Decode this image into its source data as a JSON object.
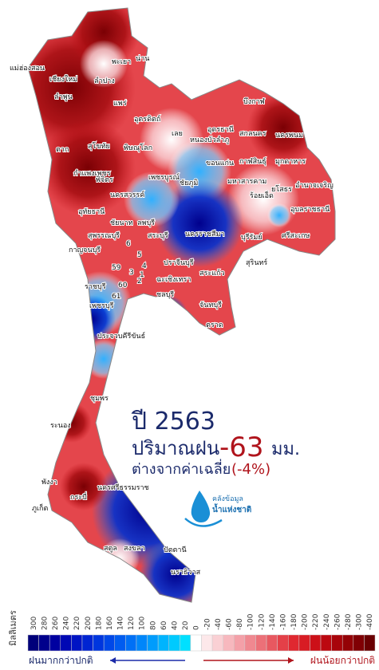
{
  "title": {
    "year": "ปี 2563",
    "label": "ปริมาณฝน",
    "value": "-63",
    "unit": "มม.",
    "diff_text": "ต่างจากค่าเฉลี่ย",
    "diff_value": "(-4%)"
  },
  "logo": {
    "line1": "คลังข้อมูล",
    "line2": "น้ำแห่งชาติ"
  },
  "provinces": [
    "แม่ฮ่องสอน",
    "เชียงใหม่",
    "ลำพูน",
    "ลำปาง",
    "พะเยา",
    "น่าน",
    "แพร่",
    "อุตรดิตถ์",
    "ตาก",
    "สุโขทัย",
    "พิษณุโลก",
    "กำแพงเพชร",
    "พิจิตร",
    "เพชรบูรณ์",
    "นครสวรรค์",
    "อุทัยธานี",
    "ชัยนาท",
    "ลพบุรี",
    "สุพรรณบุรี",
    "กาญจนบุรี",
    "สระบุรี",
    "เลย",
    "หนองบัวลำภู",
    "อุดรธานี",
    "สกลนคร",
    "นครพนม",
    "บึงกาฬ",
    "ขอนแก่น",
    "ชัยภูมิ",
    "กาฬสินธุ์",
    "มุกดาหาร",
    "มหาสารคาม",
    "ร้อยเอ็ด",
    "ยโสธร",
    "อำนาจเจริญ",
    "อุบลราชธานี",
    "นครราชสีมา",
    "บุรีรัมย์",
    "สุรินทร์",
    "ศรีสะเกษ",
    "ปราจีนบุรี",
    "สระแก้ว",
    "ฉะเชิงเทรา",
    "ราชบุรี",
    "เพชรบุรี",
    "ชลบุรี",
    "จันทบุรี",
    "ตราด",
    "ประจวบคีรีขันธ์",
    "ชุมพร",
    "ระนอง",
    "พังงา",
    "กระบี่",
    "ภูเก็ต",
    "นครศรีธรรมราช",
    "สตูล",
    "สงขลา",
    "ปัตตานี",
    "นราธิวาส",
    "6",
    "5",
    "4",
    "3",
    "2",
    "1",
    "59",
    "60",
    "61"
  ],
  "legend": {
    "unit": "มิลลิเมตร",
    "ticks": [
      300,
      280,
      260,
      240,
      220,
      200,
      180,
      160,
      140,
      120,
      100,
      80,
      60,
      40,
      20,
      0,
      -20,
      -40,
      -60,
      -80,
      -100,
      -120,
      -140,
      -160,
      -180,
      -200,
      -220,
      -240,
      -260,
      -280,
      -300,
      -400
    ],
    "colors": [
      "#00007a",
      "#00008c",
      "#0000a0",
      "#0008b4",
      "#0014c4",
      "#0024d2",
      "#0036de",
      "#0048e8",
      "#005cf0",
      "#0070f6",
      "#0086fa",
      "#009cfc",
      "#00b4fe",
      "#00cafe",
      "#00e0ff",
      "#ffffff",
      "#fde8ea",
      "#fad0d4",
      "#f7b8be",
      "#f4a0a8",
      "#f08890",
      "#ec7078",
      "#e85860",
      "#e44048",
      "#e02830",
      "#d81c24",
      "#cc1018",
      "#bc0810",
      "#a8040a",
      "#940206",
      "#800004",
      "#6a0002"
    ],
    "more": "ฝนมากกว่าปกติ",
    "less": "ฝนน้อยกว่าปกติ"
  }
}
